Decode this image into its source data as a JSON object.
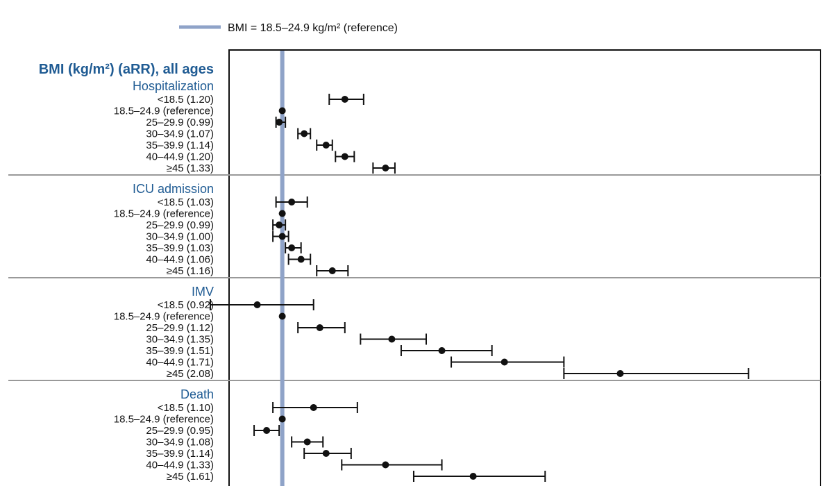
{
  "chart_data": {
    "type": "forest",
    "title": "BMI (kg/m²) (aRR), all ages",
    "legend": {
      "label": "BMI = 18.5–24.9 kg/m² (reference)",
      "placement": "top-left"
    },
    "reference_value": 1.0,
    "x_range": [
      0.83,
      2.72
    ],
    "sections": [
      {
        "name": "Hospitalization",
        "rows": [
          {
            "label": "<18.5 (1.20)",
            "est": 1.2,
            "lo": 1.15,
            "hi": 1.26
          },
          {
            "label": "18.5–24.9 (reference)",
            "est": 1.0,
            "lo": 1.0,
            "hi": 1.0
          },
          {
            "label": "25–29.9 (0.99)",
            "est": 0.99,
            "lo": 0.98,
            "hi": 1.01
          },
          {
            "label": "30–34.9 (1.07)",
            "est": 1.07,
            "lo": 1.05,
            "hi": 1.09
          },
          {
            "label": "35–39.9 (1.14)",
            "est": 1.14,
            "lo": 1.11,
            "hi": 1.16
          },
          {
            "label": "40–44.9 (1.20)",
            "est": 1.2,
            "lo": 1.17,
            "hi": 1.23
          },
          {
            "label": "≥45 (1.33)",
            "est": 1.33,
            "lo": 1.29,
            "hi": 1.36
          }
        ]
      },
      {
        "name": "ICU admission",
        "rows": [
          {
            "label": "<18.5 (1.03)",
            "est": 1.03,
            "lo": 0.98,
            "hi": 1.08
          },
          {
            "label": "18.5–24.9 (reference)",
            "est": 1.0,
            "lo": 1.0,
            "hi": 1.0
          },
          {
            "label": "25–29.9 (0.99)",
            "est": 0.99,
            "lo": 0.97,
            "hi": 1.01
          },
          {
            "label": "30–34.9 (1.00)",
            "est": 1.0,
            "lo": 0.97,
            "hi": 1.02
          },
          {
            "label": "35–39.9 (1.03)",
            "est": 1.03,
            "lo": 1.01,
            "hi": 1.06
          },
          {
            "label": "40–44.9 (1.06)",
            "est": 1.06,
            "lo": 1.02,
            "hi": 1.09
          },
          {
            "label": "≥45 (1.16)",
            "est": 1.16,
            "lo": 1.11,
            "hi": 1.21
          }
        ]
      },
      {
        "name": "IMV",
        "rows": [
          {
            "label": "<18.5 (0.92)",
            "est": 0.92,
            "lo": 0.77,
            "hi": 1.1
          },
          {
            "label": "18.5–24.9 (reference)",
            "est": 1.0,
            "lo": 1.0,
            "hi": 1.0
          },
          {
            "label": "25–29.9 (1.12)",
            "est": 1.12,
            "lo": 1.05,
            "hi": 1.2
          },
          {
            "label": "30–34.9 (1.35)",
            "est": 1.35,
            "lo": 1.25,
            "hi": 1.46
          },
          {
            "label": "35–39.9 (1.51)",
            "est": 1.51,
            "lo": 1.38,
            "hi": 1.67
          },
          {
            "label": "40–44.9 (1.71)",
            "est": 1.71,
            "lo": 1.54,
            "hi": 1.9
          },
          {
            "label": "≥45 (2.08)",
            "est": 2.08,
            "lo": 1.9,
            "hi": 2.49
          }
        ]
      },
      {
        "name": "Death",
        "rows": [
          {
            "label": "<18.5 (1.10)",
            "est": 1.1,
            "lo": 0.97,
            "hi": 1.24
          },
          {
            "label": "18.5–24.9 (reference)",
            "est": 1.0,
            "lo": 1.0,
            "hi": 1.0
          },
          {
            "label": "25–29.9 (0.95)",
            "est": 0.95,
            "lo": 0.91,
            "hi": 0.99
          },
          {
            "label": "30–34.9 (1.08)",
            "est": 1.08,
            "lo": 1.03,
            "hi": 1.13
          },
          {
            "label": "35–39.9 (1.14)",
            "est": 1.14,
            "lo": 1.07,
            "hi": 1.22
          },
          {
            "label": "40–44.9 (1.33)",
            "est": 1.33,
            "lo": 1.19,
            "hi": 1.51
          },
          {
            "label": "≥45 (1.61)",
            "est": 1.61,
            "lo": 1.42,
            "hi": 1.84
          }
        ]
      }
    ],
    "colors": {
      "reference_line": "#8fa3c8",
      "section_title": "#1f5b93",
      "marks": "#111111",
      "divider": "#999999",
      "frame": "#111111"
    }
  }
}
